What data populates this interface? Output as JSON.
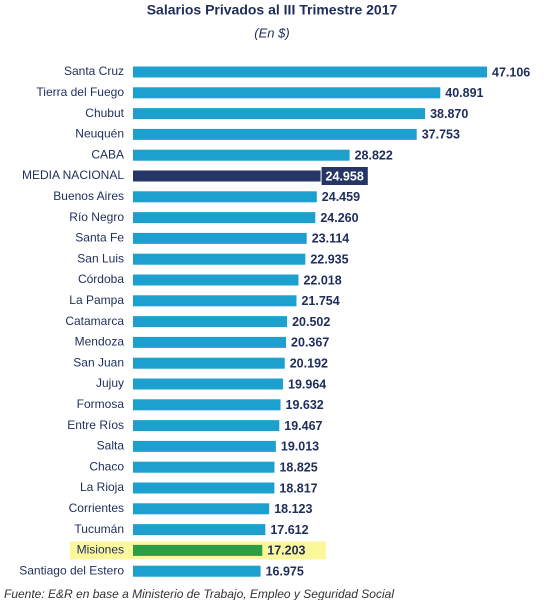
{
  "chart_data": {
    "type": "hbar",
    "title": "Salarios Privados al III Trimestre 2017",
    "subtitle": "(En $)",
    "categories": [
      "Santa Cruz",
      "Tierra del Fuego",
      "Chubut",
      "Neuquén",
      "CABA",
      "MEDIA NACIONAL",
      "Buenos Aires",
      "Río Negro",
      "Santa Fe",
      "San Luis",
      "Córdoba",
      "La Pampa",
      "Catamarca",
      "Mendoza",
      "San Juan",
      "Jujuy",
      "Formosa",
      "Entre Ríos",
      "Salta",
      "Chaco",
      "La Rioja",
      "Corrientes",
      "Tucumán",
      "Misiones",
      "Santiago del Estero"
    ],
    "values": [
      47106,
      40891,
      38870,
      37753,
      28822,
      24958,
      24459,
      24260,
      23114,
      22935,
      22018,
      21754,
      20502,
      20367,
      20192,
      19964,
      19632,
      19467,
      19013,
      18825,
      18817,
      18123,
      17612,
      17203,
      16975
    ],
    "value_labels": [
      "47.106",
      "40.891",
      "38.870",
      "37.753",
      "28.822",
      "24.958",
      "24.459",
      "24.260",
      "23.114",
      "22.935",
      "22.018",
      "21.754",
      "20.502",
      "20.367",
      "20.192",
      "19.964",
      "19.632",
      "19.467",
      "19.013",
      "18.825",
      "18.817",
      "18.123",
      "17.612",
      "17.203",
      "16.975"
    ],
    "colors": [
      "#1ea0cf",
      "#1ea0cf",
      "#1ea0cf",
      "#1ea0cf",
      "#1ea0cf",
      "#263566",
      "#1ea0cf",
      "#1ea0cf",
      "#1ea0cf",
      "#1ea0cf",
      "#1ea0cf",
      "#1ea0cf",
      "#1ea0cf",
      "#1ea0cf",
      "#1ea0cf",
      "#1ea0cf",
      "#1ea0cf",
      "#1ea0cf",
      "#1ea0cf",
      "#1ea0cf",
      "#1ea0cf",
      "#1ea0cf",
      "#1ea0cf",
      "#2a9d45",
      "#1ea0cf"
    ],
    "value_label_backgrounds": [
      null,
      null,
      null,
      null,
      null,
      "#263566",
      null,
      null,
      null,
      null,
      null,
      null,
      null,
      null,
      null,
      null,
      null,
      null,
      null,
      null,
      null,
      null,
      null,
      null,
      null
    ],
    "row_backgrounds": [
      null,
      null,
      null,
      null,
      null,
      null,
      null,
      null,
      null,
      null,
      null,
      null,
      null,
      null,
      null,
      null,
      null,
      null,
      null,
      null,
      null,
      null,
      null,
      "#fcf79b",
      null
    ],
    "source": "Fuente: E&R en base a Ministerio de Trabajo, Empleo y Seguridad Social"
  }
}
